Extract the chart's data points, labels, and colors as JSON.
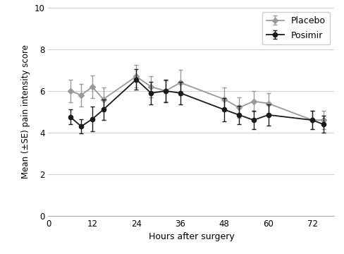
{
  "placebo_x": [
    6,
    9,
    12,
    15,
    24,
    28,
    32,
    36,
    48,
    52,
    56,
    60,
    72,
    75
  ],
  "placebo_y": [
    6.0,
    5.8,
    6.2,
    5.6,
    6.7,
    6.2,
    6.0,
    6.4,
    5.6,
    5.2,
    5.5,
    5.4,
    4.6,
    4.6
  ],
  "placebo_err": [
    0.55,
    0.55,
    0.55,
    0.55,
    0.55,
    0.5,
    0.5,
    0.6,
    0.55,
    0.5,
    0.5,
    0.5,
    0.45,
    0.45
  ],
  "posimir_x": [
    6,
    9,
    12,
    15,
    24,
    28,
    32,
    36,
    48,
    52,
    56,
    60,
    72,
    75
  ],
  "posimir_y": [
    4.75,
    4.3,
    4.65,
    5.1,
    6.55,
    5.9,
    6.0,
    5.9,
    5.1,
    4.85,
    4.6,
    4.85,
    4.6,
    4.4
  ],
  "posimir_err": [
    0.35,
    0.35,
    0.6,
    0.5,
    0.5,
    0.55,
    0.55,
    0.55,
    0.55,
    0.45,
    0.45,
    0.5,
    0.45,
    0.4
  ],
  "placebo_color": "#999999",
  "posimir_color": "#1a1a1a",
  "ylabel": "Mean (±SE) pain intensity score",
  "xlabel": "Hours after surgery",
  "xlim": [
    0,
    78
  ],
  "ylim": [
    0,
    10
  ],
  "yticks": [
    0,
    2,
    4,
    6,
    8,
    10
  ],
  "xticks": [
    0,
    12,
    24,
    36,
    48,
    60,
    72
  ],
  "legend_placebo": "Placebo",
  "legend_posimir": "Posimir",
  "bg_color": "#ffffff",
  "grid_color": "#d0d0d0"
}
